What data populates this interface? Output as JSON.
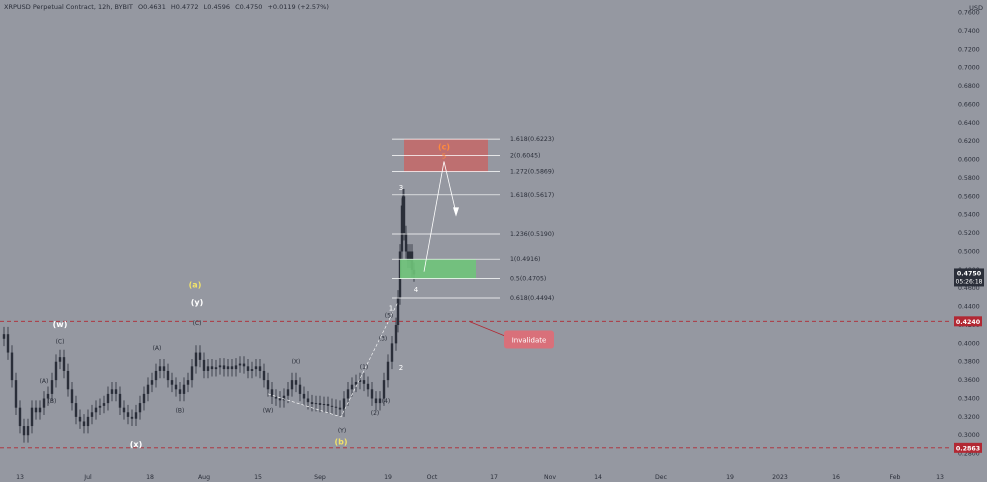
{
  "header": {
    "symbol": "XRPUSD Perpetual Contract, 12h, BYBIT",
    "open": "O0.4631",
    "high": "H0.4772",
    "low": "L0.4596",
    "close": "C0.4750",
    "change": "+0.0119 (+2.57%)"
  },
  "currency": "USD",
  "colors": {
    "background": "#9598a1",
    "candle": "#2a2e39",
    "fib_line": "#ffffff",
    "target_box": "#c26a6a",
    "support_box": "#6fc47a",
    "invalidation": "#b22833",
    "wave_abc": "#f1e36a",
    "orange_circle": "#ff8a3d"
  },
  "chart_data": {
    "type": "candlestick",
    "y_axis": {
      "range": [
        0.26,
        0.765
      ],
      "ticks": [
        "0.7600",
        "0.7400",
        "0.7200",
        "0.7000",
        "0.6800",
        "0.6600",
        "0.6400",
        "0.6200",
        "0.6000",
        "0.5800",
        "0.5600",
        "0.5400",
        "0.5200",
        "0.5000",
        "0.4800",
        "0.4600",
        "0.4400",
        "0.4200",
        "0.4000",
        "0.3800",
        "0.3600",
        "0.3400",
        "0.3200",
        "0.3000",
        "0.2800"
      ]
    },
    "x_axis": {
      "ticks": [
        "13",
        "Jul",
        "18",
        "Aug",
        "15",
        "Sep",
        "19",
        "Oct",
        "17",
        "Nov",
        "14",
        "Dec",
        "19",
        "2023",
        "16",
        "Feb",
        "13"
      ]
    },
    "last_price": "0.4750",
    "countdown": "05:26:18",
    "invalidation_level": "0.4240",
    "low_level": "0.2863",
    "invalidation_label": "Invalidate",
    "fib_levels": [
      {
        "label": "1.618(0.6223)",
        "value": 0.6223
      },
      {
        "label": "2(0.6045)",
        "value": 0.6045
      },
      {
        "label": "1.272(0.5869)",
        "value": 0.5869
      },
      {
        "label": "1.618(0.5617)",
        "value": 0.5617
      },
      {
        "label": "1.236(0.5190)",
        "value": 0.519
      },
      {
        "label": "1(0.4916)",
        "value": 0.4916
      },
      {
        "label": "0.5(0.4705)",
        "value": 0.4705
      },
      {
        "label": "0.618(0.4494)",
        "value": 0.4494
      }
    ],
    "wave_labels": [
      "(w)",
      "(C)",
      "(A)",
      "(B)",
      "(x)",
      "(A)",
      "(B)",
      "(a)",
      "(y)",
      "(C)",
      "(W)",
      "(X)",
      "(Y)",
      "(b)",
      "(1)",
      "(2)",
      "(3)",
      "(4)",
      "(5)",
      "1",
      "2",
      "3",
      "4",
      "(c)",
      "5"
    ],
    "price_path": [
      [
        0,
        0.405
      ],
      [
        4,
        0.41
      ],
      [
        8,
        0.39
      ],
      [
        12,
        0.36
      ],
      [
        16,
        0.33
      ],
      [
        20,
        0.31
      ],
      [
        24,
        0.3
      ],
      [
        28,
        0.31
      ],
      [
        32,
        0.33
      ],
      [
        36,
        0.325
      ],
      [
        40,
        0.33
      ],
      [
        44,
        0.34
      ],
      [
        48,
        0.345
      ],
      [
        52,
        0.36
      ],
      [
        56,
        0.38
      ],
      [
        60,
        0.385
      ],
      [
        64,
        0.37
      ],
      [
        68,
        0.35
      ],
      [
        72,
        0.335
      ],
      [
        76,
        0.32
      ],
      [
        80,
        0.315
      ],
      [
        84,
        0.31
      ],
      [
        88,
        0.32
      ],
      [
        92,
        0.325
      ],
      [
        96,
        0.33
      ],
      [
        100,
        0.332
      ],
      [
        104,
        0.335
      ],
      [
        108,
        0.345
      ],
      [
        112,
        0.35
      ],
      [
        116,
        0.345
      ],
      [
        120,
        0.33
      ],
      [
        124,
        0.325
      ],
      [
        128,
        0.32
      ],
      [
        132,
        0.318
      ],
      [
        136,
        0.325
      ],
      [
        140,
        0.335
      ],
      [
        144,
        0.345
      ],
      [
        148,
        0.355
      ],
      [
        152,
        0.36
      ],
      [
        156,
        0.37
      ],
      [
        160,
        0.375
      ],
      [
        164,
        0.37
      ],
      [
        168,
        0.36
      ],
      [
        172,
        0.355
      ],
      [
        176,
        0.35
      ],
      [
        180,
        0.345
      ],
      [
        184,
        0.355
      ],
      [
        188,
        0.36
      ],
      [
        192,
        0.375
      ],
      [
        196,
        0.39
      ],
      [
        200,
        0.382
      ],
      [
        204,
        0.37
      ],
      [
        208,
        0.375
      ],
      [
        212,
        0.372
      ],
      [
        216,
        0.374
      ],
      [
        220,
        0.376
      ],
      [
        224,
        0.372
      ],
      [
        228,
        0.375
      ],
      [
        232,
        0.372
      ],
      [
        236,
        0.376
      ],
      [
        240,
        0.378
      ],
      [
        244,
        0.375
      ],
      [
        248,
        0.37
      ],
      [
        252,
        0.372
      ],
      [
        256,
        0.375
      ],
      [
        260,
        0.37
      ],
      [
        264,
        0.36
      ],
      [
        268,
        0.35
      ],
      [
        272,
        0.342
      ],
      [
        276,
        0.34
      ],
      [
        280,
        0.338
      ],
      [
        284,
        0.343
      ],
      [
        288,
        0.35
      ],
      [
        292,
        0.36
      ],
      [
        296,
        0.355
      ],
      [
        300,
        0.345
      ],
      [
        304,
        0.34
      ],
      [
        308,
        0.336
      ],
      [
        312,
        0.334
      ],
      [
        316,
        0.335
      ],
      [
        320,
        0.333
      ],
      [
        324,
        0.334
      ],
      [
        328,
        0.332
      ],
      [
        332,
        0.331
      ],
      [
        336,
        0.33
      ],
      [
        340,
        0.328
      ],
      [
        344,
        0.34
      ],
      [
        348,
        0.35
      ],
      [
        352,
        0.355
      ],
      [
        356,
        0.358
      ],
      [
        360,
        0.36
      ],
      [
        364,
        0.356
      ],
      [
        368,
        0.35
      ],
      [
        372,
        0.34
      ],
      [
        376,
        0.335
      ],
      [
        380,
        0.34
      ],
      [
        384,
        0.36
      ],
      [
        388,
        0.38
      ],
      [
        392,
        0.4
      ],
      [
        396,
        0.42
      ],
      [
        398,
        0.45
      ],
      [
        400,
        0.5
      ],
      [
        402,
        0.55
      ],
      [
        403,
        0.56
      ],
      [
        404,
        0.52
      ],
      [
        406,
        0.5
      ],
      [
        408,
        0.49
      ],
      [
        410,
        0.5
      ],
      [
        412,
        0.48
      ],
      [
        414,
        0.475
      ]
    ]
  }
}
